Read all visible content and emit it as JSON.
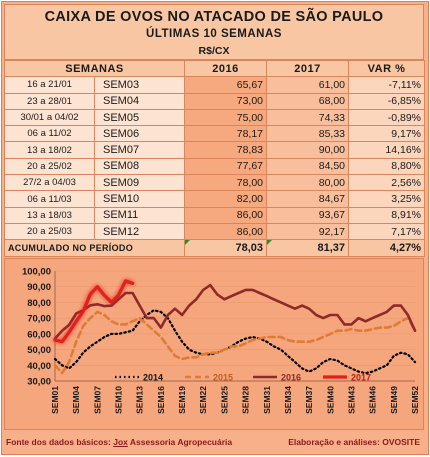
{
  "header": {
    "title": "CAIXA DE OVOS NO ATACADO DE SÃO PAULO",
    "subtitle": "ÚLTIMAS 10 SEMANAS",
    "unit": "R$/CX"
  },
  "table": {
    "headers": {
      "semanas": "SEMANAS",
      "y2016": "2016",
      "y2017": "2017",
      "var": "VAR %"
    },
    "rows": [
      {
        "period": "16 a 21/01",
        "week": "SEM03",
        "v2016": "65,67",
        "v2017": "61,00",
        "var": "-7,11%"
      },
      {
        "period": "23 a 28/01",
        "week": "SEM04",
        "v2016": "73,00",
        "v2017": "68,00",
        "var": "-6,85%"
      },
      {
        "period": "30/01 a 04/02",
        "week": "SEM05",
        "v2016": "75,00",
        "v2017": "74,33",
        "var": "-0,89%"
      },
      {
        "period": "06 a 11/02",
        "week": "SEM06",
        "v2016": "78,17",
        "v2017": "85,33",
        "var": "9,17%"
      },
      {
        "period": "13 a 18/02",
        "week": "SEM07",
        "v2016": "78,83",
        "v2017": "90,00",
        "var": "14,16%"
      },
      {
        "period": "20 a 25/02",
        "week": "SEM08",
        "v2016": "77,67",
        "v2017": "84,50",
        "var": "8,80%"
      },
      {
        "period": "27/2 a 04/03",
        "week": "SEM09",
        "v2016": "78,00",
        "v2017": "80,00",
        "var": "2,56%"
      },
      {
        "period": "06 a 11/03",
        "week": "SEM10",
        "v2016": "82,00",
        "v2017": "84,67",
        "var": "3,25%"
      },
      {
        "period": "13 a 18/03",
        "week": "SEM11",
        "v2016": "86,00",
        "v2017": "93,67",
        "var": "8,91%"
      },
      {
        "period": "20 a 25/03",
        "week": "SEM12",
        "v2016": "86,00",
        "v2017": "92,17",
        "var": "7,17%"
      }
    ],
    "accumulated": {
      "label": "ACUMULADO NO PERÍODO",
      "v2016": "78,03",
      "v2017": "81,37",
      "var": "4,27%"
    }
  },
  "chart_data": {
    "type": "line",
    "ylim": [
      30,
      100
    ],
    "yticks": [
      "100,00",
      "90,00",
      "80,00",
      "70,00",
      "60,00",
      "50,00",
      "40,00",
      "30,00"
    ],
    "ytick_values": [
      100,
      90,
      80,
      70,
      60,
      50,
      40,
      30
    ],
    "xtick_labels": [
      "SEM01",
      "SEM04",
      "SEM07",
      "SEM10",
      "SEM13",
      "SEM16",
      "SEM19",
      "SEM22",
      "SEM25",
      "SEM28",
      "SEM31",
      "SEM34",
      "SEM37",
      "SEM40",
      "SEM43",
      "SEM46",
      "SEM49",
      "SEM52"
    ],
    "xtick_weeks": [
      1,
      4,
      7,
      10,
      13,
      16,
      19,
      22,
      25,
      28,
      31,
      34,
      37,
      40,
      43,
      46,
      49,
      52
    ],
    "x_range": [
      1,
      52
    ],
    "legend_position": "bottom-center",
    "series": [
      {
        "name": "2014",
        "color": "#000000",
        "style": "dotted",
        "width": 2.2,
        "weeks": [
          1,
          2,
          3,
          4,
          5,
          6,
          7,
          8,
          9,
          10,
          11,
          12,
          13,
          14,
          15,
          16,
          17,
          18,
          19,
          20,
          21,
          22,
          23,
          24,
          25,
          26,
          27,
          28,
          29,
          30,
          31,
          32,
          33,
          34,
          35,
          36,
          37,
          38,
          39,
          40,
          41,
          42,
          43,
          44,
          45,
          46,
          47,
          48,
          49,
          50,
          51,
          52
        ],
        "values": [
          44,
          40,
          38,
          42,
          48,
          52,
          55,
          58,
          60,
          60,
          61,
          62,
          68,
          72,
          75,
          74,
          70,
          62,
          55,
          50,
          48,
          47,
          47,
          48,
          50,
          52,
          55,
          57,
          58,
          57,
          55,
          52,
          50,
          46,
          42,
          38,
          36,
          38,
          42,
          44,
          43,
          40,
          38,
          36,
          35,
          36,
          38,
          40,
          46,
          48,
          47,
          42
        ]
      },
      {
        "name": "2015",
        "color": "#e07b35",
        "style": "dashed",
        "width": 2.6,
        "weeks": [
          1,
          2,
          3,
          4,
          5,
          6,
          7,
          8,
          9,
          10,
          11,
          12,
          13,
          14,
          15,
          16,
          17,
          18,
          19,
          20,
          21,
          22,
          23,
          24,
          25,
          26,
          27,
          28,
          29,
          30,
          31,
          32,
          33,
          34,
          35,
          36,
          37,
          38,
          39,
          40,
          41,
          42,
          43,
          44,
          45,
          46,
          47,
          48,
          49,
          50,
          51,
          52
        ],
        "values": [
          40,
          35,
          42,
          55,
          65,
          70,
          74,
          72,
          68,
          66,
          66,
          68,
          70,
          66,
          62,
          58,
          52,
          46,
          44,
          45,
          45,
          47,
          48,
          48,
          50,
          52,
          52,
          54,
          56,
          57,
          58,
          58,
          58,
          56,
          55,
          55,
          55,
          56,
          58,
          60,
          62,
          62,
          63,
          62,
          62,
          63,
          64,
          64,
          65,
          68,
          70,
          62
        ]
      },
      {
        "name": "2016",
        "color": "#8e2a2a",
        "style": "solid",
        "width": 2.6,
        "weeks": [
          1,
          2,
          3,
          4,
          5,
          6,
          7,
          8,
          9,
          10,
          11,
          12,
          13,
          14,
          15,
          16,
          17,
          18,
          19,
          20,
          21,
          22,
          23,
          24,
          25,
          26,
          27,
          28,
          29,
          30,
          31,
          32,
          33,
          34,
          35,
          36,
          37,
          38,
          39,
          40,
          41,
          42,
          43,
          44,
          45,
          46,
          47,
          48,
          49,
          50,
          51,
          52
        ],
        "values": [
          57,
          62,
          65.67,
          73,
          75,
          78.17,
          78.83,
          77.67,
          78,
          82,
          86,
          86,
          78,
          70,
          70,
          64,
          72,
          76,
          72,
          78,
          82,
          88,
          91,
          85,
          82,
          84,
          86,
          88,
          88,
          86,
          84,
          82,
          80,
          78,
          76,
          78,
          76,
          72,
          70,
          72,
          72,
          66,
          66,
          70,
          68,
          70,
          72,
          74,
          78,
          78,
          72,
          62
        ]
      },
      {
        "name": "2017",
        "color": "#e0201a",
        "style": "solid",
        "width": 3.2,
        "glow": true,
        "weeks": [
          1,
          2,
          3,
          4,
          5,
          6,
          7,
          8,
          9,
          10,
          11,
          12
        ],
        "values": [
          56,
          55,
          61,
          68,
          74.33,
          85.33,
          90,
          84.5,
          80,
          84.67,
          93.67,
          92.17
        ]
      }
    ]
  },
  "footer": {
    "source_prefix": "Fonte dos dados básicos: ",
    "source_name": "Jox",
    "source_suffix": " Assessoria Agropecuária",
    "credits": "Elaboração e análises: OVOSITE"
  }
}
